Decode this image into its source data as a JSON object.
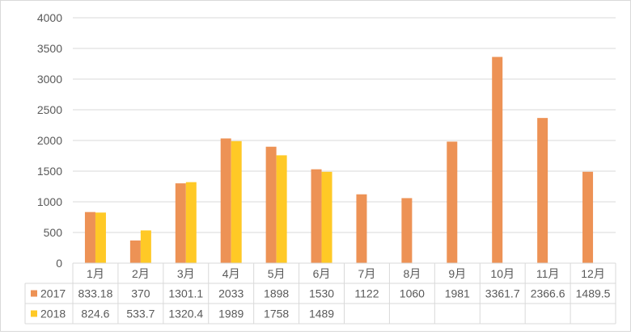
{
  "chart_data": {
    "type": "bar",
    "title": "",
    "xlabel": "",
    "ylabel": "",
    "categories": [
      "1月",
      "2月",
      "3月",
      "4月",
      "5月",
      "6月",
      "7月",
      "8月",
      "9月",
      "10月",
      "11月",
      "12月"
    ],
    "series": [
      {
        "name": "2017",
        "color": "#ED9255",
        "values": [
          833.18,
          370,
          1301.1,
          2033,
          1898,
          1530,
          1122,
          1060,
          1981,
          3361.7,
          2366.6,
          1489.5
        ],
        "labels": [
          "833.18",
          "370",
          "1301.1",
          "2033",
          "1898",
          "1530",
          "1122",
          "1060",
          "1981",
          "3361.7",
          "2366.6",
          "1489.5"
        ]
      },
      {
        "name": "2018",
        "color": "#FFC926",
        "values": [
          824.6,
          533.7,
          1320.4,
          1989,
          1758,
          1489,
          null,
          null,
          null,
          null,
          null,
          null
        ],
        "labels": [
          "824.6",
          "533.7",
          "1320.4",
          "1989",
          "1758",
          "1489",
          "",
          "",
          "",
          "",
          "",
          ""
        ]
      }
    ],
    "ylim": [
      0,
      4000
    ],
    "yticks": [
      "0",
      "500",
      "1000",
      "1500",
      "2000",
      "2500",
      "3000",
      "3500",
      "4000"
    ],
    "grid": true,
    "legend": "data-table"
  }
}
